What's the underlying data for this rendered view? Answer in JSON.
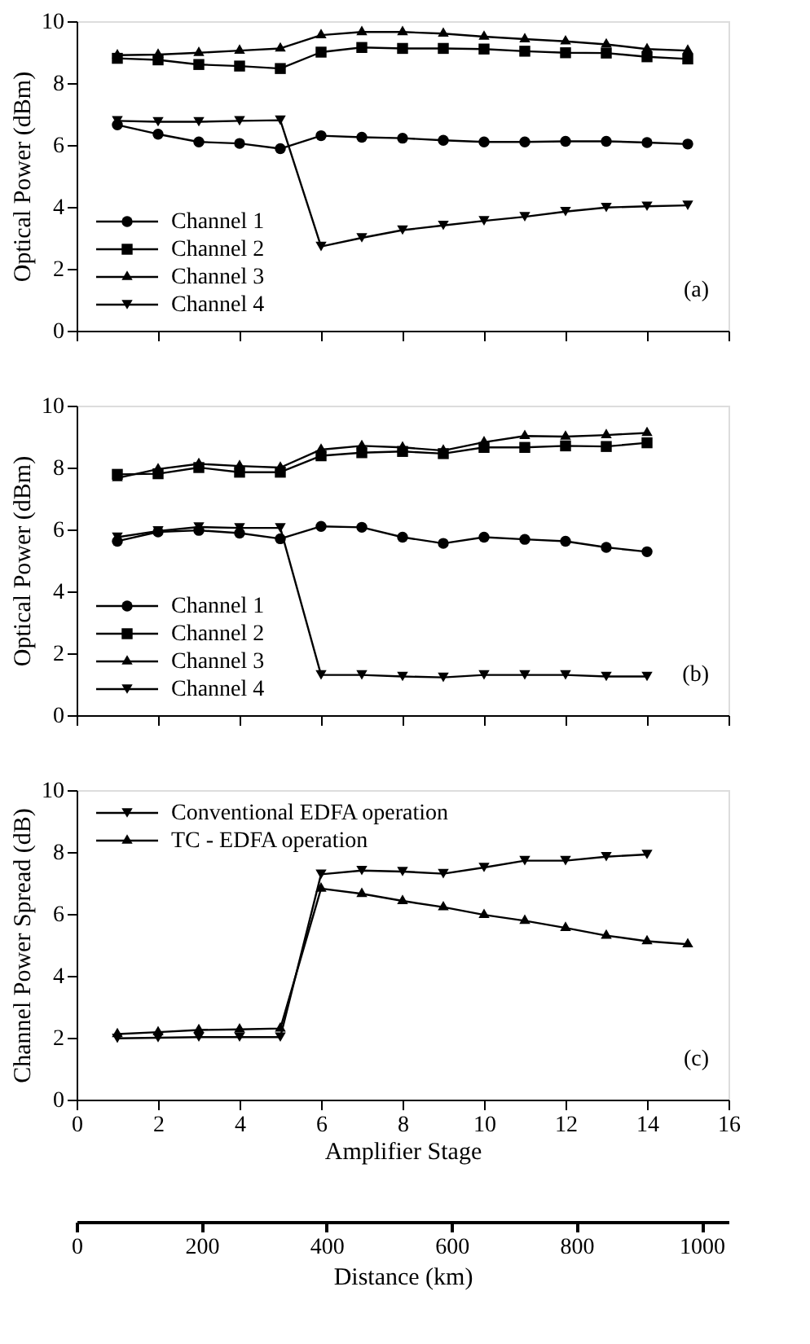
{
  "chart_data": [
    {
      "type": "line",
      "ylabel": "Optical Power (dBm)",
      "x": [
        1,
        2,
        3,
        4,
        5,
        6,
        7,
        8,
        9,
        10,
        11,
        12,
        13,
        14,
        15
      ],
      "xlim": [
        0,
        16
      ],
      "xticks": [
        0,
        2,
        4,
        6,
        8,
        10,
        12,
        14,
        16
      ],
      "ylim": [
        0,
        10
      ],
      "yticks": [
        0,
        2,
        4,
        6,
        8,
        10
      ],
      "tick_labels": "y",
      "grid": false,
      "legend": "bottom left",
      "annotations": [
        "(a)"
      ],
      "series": [
        {
          "name": "Channel 1",
          "color": "#000000",
          "marker": "circle",
          "values": [
            6.65,
            6.35,
            6.1,
            6.05,
            5.88,
            6.3,
            6.25,
            6.22,
            6.15,
            6.1,
            6.1,
            6.12,
            6.12,
            6.08,
            6.03
          ]
        },
        {
          "name": "Channel 2",
          "color": "#000000",
          "marker": "square",
          "values": [
            8.8,
            8.75,
            8.6,
            8.55,
            8.47,
            9.0,
            9.15,
            9.12,
            9.12,
            9.1,
            9.03,
            8.98,
            8.97,
            8.85,
            8.78
          ]
        },
        {
          "name": "Channel 3",
          "color": "#000000",
          "marker": "triangle",
          "values": [
            8.9,
            8.92,
            8.98,
            9.05,
            9.12,
            9.55,
            9.65,
            9.65,
            9.6,
            9.5,
            9.42,
            9.35,
            9.25,
            9.1,
            9.05
          ]
        },
        {
          "name": "Channel 4",
          "color": "#000000",
          "marker": "triangle-down",
          "values": [
            6.78,
            6.75,
            6.75,
            6.78,
            6.8,
            2.72,
            3.0,
            3.25,
            3.4,
            3.55,
            3.68,
            3.85,
            3.98,
            4.02,
            4.05
          ]
        }
      ]
    },
    {
      "type": "line",
      "ylabel": "Optical Power (dBm)",
      "x": [
        1,
        2,
        3,
        4,
        5,
        6,
        7,
        8,
        9,
        10,
        11,
        12,
        13,
        14
      ],
      "xlim": [
        0,
        16
      ],
      "xticks": [
        0,
        2,
        4,
        6,
        8,
        10,
        12,
        14,
        16
      ],
      "ylim": [
        0,
        10
      ],
      "yticks": [
        0,
        2,
        4,
        6,
        8,
        10
      ],
      "tick_labels": "y",
      "grid": false,
      "legend": "bottom left",
      "annotations": [
        "(b)"
      ],
      "series": [
        {
          "name": "Channel 1",
          "color": "#000000",
          "marker": "circle",
          "values": [
            5.62,
            5.92,
            5.97,
            5.88,
            5.7,
            6.1,
            6.07,
            5.75,
            5.55,
            5.75,
            5.68,
            5.62,
            5.42,
            5.28
          ]
        },
        {
          "name": "Channel 2",
          "color": "#000000",
          "marker": "square",
          "values": [
            7.78,
            7.8,
            8.0,
            7.85,
            7.85,
            8.38,
            8.48,
            8.52,
            8.45,
            8.65,
            8.65,
            8.7,
            8.68,
            8.8
          ]
        },
        {
          "name": "Channel 3",
          "color": "#000000",
          "marker": "triangle",
          "values": [
            7.66,
            7.95,
            8.12,
            8.05,
            8.0,
            8.58,
            8.7,
            8.65,
            8.55,
            8.82,
            9.02,
            9.0,
            9.05,
            9.12
          ]
        },
        {
          "name": "Channel 4",
          "color": "#000000",
          "marker": "triangle-down",
          "values": [
            5.75,
            5.95,
            6.08,
            6.05,
            6.05,
            1.3,
            1.3,
            1.25,
            1.22,
            1.3,
            1.3,
            1.3,
            1.25,
            1.25
          ]
        }
      ]
    },
    {
      "type": "line",
      "ylabel": "Channel Power Spread (dB)",
      "xlabel": "Amplifier Stage",
      "x": [
        1,
        2,
        3,
        4,
        5,
        6,
        7,
        8,
        9,
        10,
        11,
        12,
        13,
        14,
        15
      ],
      "xlim": [
        0,
        16
      ],
      "xticks": [
        0,
        2,
        4,
        6,
        8,
        10,
        12,
        14,
        16
      ],
      "ylim": [
        0,
        10
      ],
      "yticks": [
        0,
        2,
        4,
        6,
        8,
        10
      ],
      "x2lim": [
        0,
        1043
      ],
      "x2ticks": [
        0,
        200,
        400,
        600,
        800,
        1000
      ],
      "x2label": "Distance (km)",
      "grid": false,
      "legend": "top left",
      "annotations": [
        "(c)"
      ],
      "series": [
        {
          "name": "Conventional EDFA operation",
          "color": "#000000",
          "marker": "triangle-down",
          "x": [
            1,
            2,
            3,
            4,
            5,
            6,
            7,
            8,
            9,
            10,
            11,
            12,
            13,
            14
          ],
          "values": [
            1.98,
            2.0,
            2.02,
            2.02,
            2.02,
            7.28,
            7.4,
            7.37,
            7.3,
            7.5,
            7.72,
            7.72,
            7.85,
            7.92
          ]
        },
        {
          "name": "TC - EDFA operation",
          "color": "#000000",
          "marker": "triangle",
          "values": [
            2.12,
            2.18,
            2.25,
            2.27,
            2.3,
            6.82,
            6.65,
            6.42,
            6.22,
            5.97,
            5.78,
            5.55,
            5.3,
            5.12,
            5.02
          ]
        }
      ]
    }
  ]
}
